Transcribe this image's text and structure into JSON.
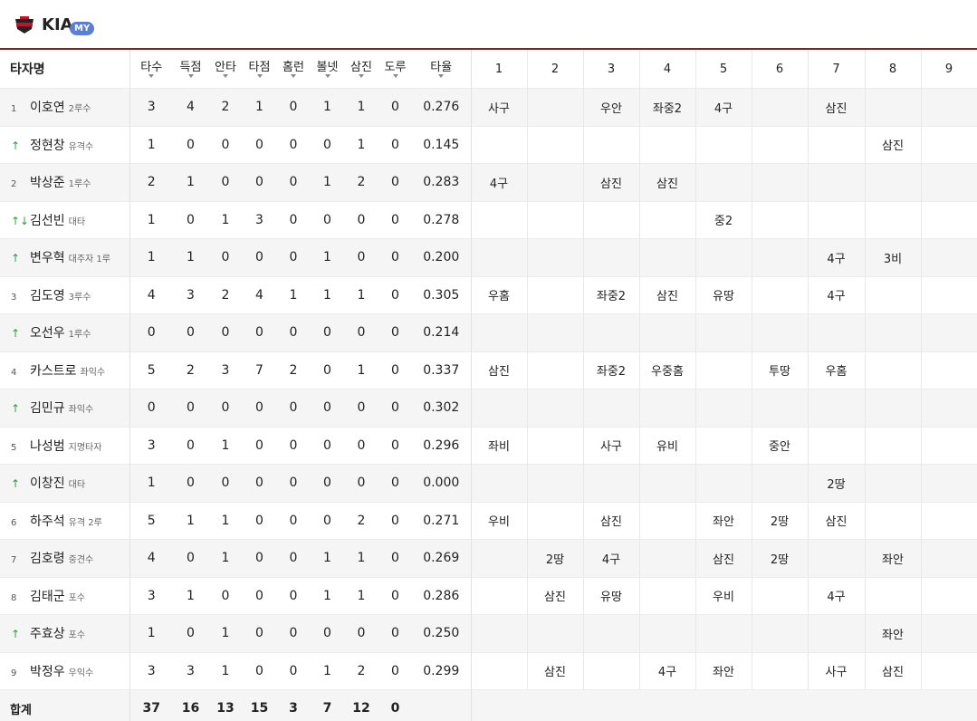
{
  "header": {
    "team": "KIA",
    "badge": "MY"
  },
  "table": {
    "columns": [
      "타자명",
      "타수",
      "득점",
      "안타",
      "타점",
      "홈런",
      "볼넷",
      "삼진",
      "도루",
      "타율",
      "1",
      "2",
      "3",
      "4",
      "5",
      "6",
      "7",
      "8",
      "9"
    ],
    "rows": [
      {
        "order": "1",
        "name": "이호연",
        "pos": "2루수",
        "stats": [
          "3",
          "4",
          "2",
          "1",
          "0",
          "1",
          "1",
          "0",
          "0.276"
        ],
        "innings": [
          "사구",
          null,
          "우안",
          "좌중2",
          "4구",
          null,
          "삼진",
          null,
          null
        ]
      },
      {
        "order": "↑",
        "name": "정현창",
        "pos": "유격수",
        "stats": [
          "1",
          "0",
          "0",
          "0",
          "0",
          "0",
          "1",
          "0",
          "0.145"
        ],
        "innings": [
          null,
          null,
          null,
          null,
          null,
          null,
          null,
          "삼진",
          null
        ]
      },
      {
        "order": "2",
        "name": "박상준",
        "pos": "1루수",
        "stats": [
          "2",
          "1",
          "0",
          "0",
          "0",
          "1",
          "2",
          "0",
          "0.283"
        ],
        "innings": [
          "4구",
          null,
          "삼진",
          "삼진",
          null,
          null,
          null,
          null,
          null
        ]
      },
      {
        "order": "↑↓",
        "name": "김선빈",
        "pos": "대타",
        "stats": [
          "1",
          "0",
          "1",
          "3",
          "0",
          "0",
          "0",
          "0",
          "0.278"
        ],
        "innings": [
          null,
          null,
          null,
          null,
          "중2",
          null,
          null,
          null,
          null
        ]
      },
      {
        "order": "↑",
        "name": "변우혁",
        "pos": "대주자 1루",
        "stats": [
          "1",
          "1",
          "0",
          "0",
          "0",
          "1",
          "0",
          "0",
          "0.200"
        ],
        "innings": [
          null,
          null,
          null,
          null,
          null,
          null,
          "4구",
          "3비",
          null
        ]
      },
      {
        "order": "3",
        "name": "김도영",
        "pos": "3루수",
        "stats": [
          "4",
          "3",
          "2",
          "4",
          "1",
          "1",
          "1",
          "0",
          "0.305"
        ],
        "innings": [
          "우홈",
          null,
          "좌중2",
          "삼진",
          "유땅",
          null,
          "4구",
          null,
          null
        ]
      },
      {
        "order": "↑",
        "name": "오선우",
        "pos": "1루수",
        "stats": [
          "0",
          "0",
          "0",
          "0",
          "0",
          "0",
          "0",
          "0",
          "0.214"
        ],
        "innings": [
          null,
          null,
          null,
          null,
          null,
          null,
          null,
          null,
          null
        ]
      },
      {
        "order": "4",
        "name": "카스트로",
        "pos": "좌익수",
        "stats": [
          "5",
          "2",
          "3",
          "7",
          "2",
          "0",
          "1",
          "0",
          "0.337"
        ],
        "innings": [
          "삼진",
          null,
          "좌중2",
          "우중홈",
          null,
          "투땅",
          "우홈",
          null,
          null
        ]
      },
      {
        "order": "↑",
        "name": "김민규",
        "pos": "좌익수",
        "stats": [
          "0",
          "0",
          "0",
          "0",
          "0",
          "0",
          "0",
          "0",
          "0.302"
        ],
        "innings": [
          null,
          null,
          null,
          null,
          null,
          null,
          null,
          null,
          null
        ]
      },
      {
        "order": "5",
        "name": "나성범",
        "pos": "지명타자",
        "stats": [
          "3",
          "0",
          "1",
          "0",
          "0",
          "0",
          "0",
          "0",
          "0.296"
        ],
        "innings": [
          "좌비",
          null,
          "사구",
          "유비",
          null,
          "중안",
          null,
          null,
          null
        ]
      },
      {
        "order": "↑",
        "name": "이창진",
        "pos": "대타",
        "stats": [
          "1",
          "0",
          "0",
          "0",
          "0",
          "0",
          "0",
          "0",
          "0.000"
        ],
        "innings": [
          null,
          null,
          null,
          null,
          null,
          null,
          "2땅",
          null,
          null
        ]
      },
      {
        "order": "6",
        "name": "하주석",
        "pos": "유격 2루",
        "stats": [
          "5",
          "1",
          "1",
          "0",
          "0",
          "0",
          "2",
          "0",
          "0.271"
        ],
        "innings": [
          "우비",
          null,
          "삼진",
          null,
          "좌안",
          "2땅",
          "삼진",
          null,
          null
        ]
      },
      {
        "order": "7",
        "name": "김호령",
        "pos": "중견수",
        "stats": [
          "4",
          "0",
          "1",
          "0",
          "0",
          "1",
          "1",
          "0",
          "0.269"
        ],
        "innings": [
          null,
          "2땅",
          "4구",
          null,
          "삼진",
          "2땅",
          null,
          "좌안",
          null
        ]
      },
      {
        "order": "8",
        "name": "김태군",
        "pos": "포수",
        "stats": [
          "3",
          "1",
          "0",
          "0",
          "0",
          "1",
          "1",
          "0",
          "0.286"
        ],
        "innings": [
          null,
          "삼진",
          "유땅",
          null,
          "우비",
          null,
          "4구",
          null,
          null
        ]
      },
      {
        "order": "↑",
        "name": "주효상",
        "pos": "포수",
        "stats": [
          "1",
          "0",
          "1",
          "0",
          "0",
          "0",
          "0",
          "0",
          "0.250"
        ],
        "innings": [
          null,
          null,
          null,
          null,
          null,
          null,
          null,
          "좌안",
          null
        ]
      },
      {
        "order": "9",
        "name": "박정우",
        "pos": "우익수",
        "stats": [
          "3",
          "3",
          "1",
          "0",
          "0",
          "1",
          "2",
          "0",
          "0.299"
        ],
        "innings": [
          null,
          "삼진",
          null,
          "4구",
          "좌안",
          null,
          "사구",
          "삼진",
          null
        ]
      }
    ],
    "total": {
      "label": "합계",
      "stats": [
        "37",
        "16",
        "13",
        "15",
        "3",
        "7",
        "12",
        "0"
      ]
    }
  }
}
